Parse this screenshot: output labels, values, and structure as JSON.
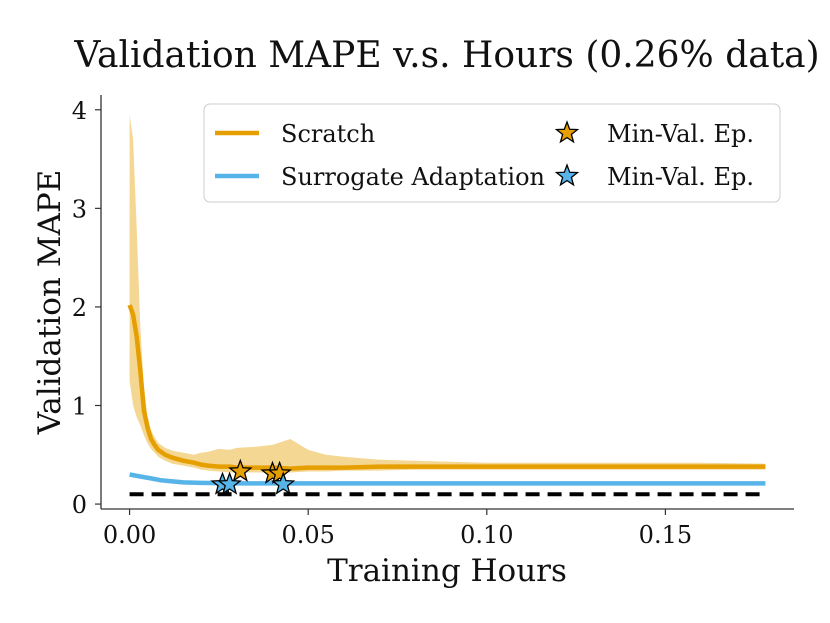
{
  "chart_data": {
    "type": "line",
    "title": "Validation MAPE v.s. Hours (0.26% data)",
    "xlabel": "Training Hours",
    "ylabel": "Validation MAPE",
    "xlim": [
      -0.008,
      0.186
    ],
    "ylim": [
      -0.05,
      4.15
    ],
    "xticks": [
      0.0,
      0.05,
      0.1,
      0.15
    ],
    "xtick_labels": [
      "0.00",
      "0.05",
      "0.10",
      "0.15"
    ],
    "yticks": [
      0,
      1,
      2,
      3,
      4
    ],
    "ytick_labels": [
      "0",
      "1",
      "2",
      "3",
      "4"
    ],
    "grid": false,
    "legend_position": "top-right",
    "series": [
      {
        "name": "Scratch",
        "color": "#E69F00",
        "x": [
          0.0,
          0.001,
          0.002,
          0.003,
          0.004,
          0.005,
          0.006,
          0.007,
          0.008,
          0.01,
          0.012,
          0.015,
          0.018,
          0.02,
          0.022,
          0.025,
          0.028,
          0.03,
          0.035,
          0.04,
          0.045,
          0.05,
          0.055,
          0.06,
          0.07,
          0.08,
          0.09,
          0.1,
          0.12,
          0.14,
          0.16,
          0.178
        ],
        "mean": [
          2.02,
          1.92,
          1.7,
          1.35,
          0.95,
          0.78,
          0.66,
          0.6,
          0.55,
          0.5,
          0.47,
          0.44,
          0.42,
          0.4,
          0.39,
          0.38,
          0.38,
          0.37,
          0.37,
          0.37,
          0.36,
          0.37,
          0.37,
          0.37,
          0.38,
          0.38,
          0.38,
          0.38,
          0.38,
          0.38,
          0.38,
          0.38
        ],
        "upper": [
          3.95,
          3.7,
          2.8,
          1.8,
          1.2,
          0.9,
          0.75,
          0.68,
          0.62,
          0.57,
          0.54,
          0.52,
          0.5,
          0.52,
          0.53,
          0.56,
          0.55,
          0.57,
          0.58,
          0.6,
          0.66,
          0.55,
          0.5,
          0.48,
          0.45,
          0.44,
          0.43,
          0.42,
          0.42,
          0.42,
          0.42,
          0.41
        ],
        "lower": [
          1.25,
          1.0,
          0.88,
          0.8,
          0.7,
          0.62,
          0.56,
          0.52,
          0.48,
          0.44,
          0.41,
          0.39,
          0.37,
          0.35,
          0.34,
          0.33,
          0.32,
          0.32,
          0.32,
          0.32,
          0.32,
          0.33,
          0.33,
          0.34,
          0.34,
          0.35,
          0.35,
          0.35,
          0.35,
          0.35,
          0.35,
          0.35
        ],
        "min_val_markers": [
          [
            0.031,
            0.33
          ],
          [
            0.04,
            0.31
          ],
          [
            0.042,
            0.31
          ]
        ]
      },
      {
        "name": "Surrogate Adaptation",
        "color": "#56B4E9",
        "x": [
          0.0,
          0.003,
          0.006,
          0.009,
          0.012,
          0.015,
          0.02,
          0.03,
          0.05,
          0.08,
          0.12,
          0.178
        ],
        "mean": [
          0.3,
          0.28,
          0.26,
          0.24,
          0.23,
          0.22,
          0.215,
          0.21,
          0.21,
          0.21,
          0.21,
          0.21
        ],
        "min_val_markers": [
          [
            0.026,
            0.2
          ],
          [
            0.028,
            0.2
          ],
          [
            0.043,
            0.2
          ]
        ]
      }
    ],
    "reference_line": {
      "y": 0.1,
      "style": "dashed",
      "color": "#000000"
    },
    "legend": [
      {
        "label": "Scratch",
        "marker_label": "Min-Val. Ep."
      },
      {
        "label": "Surrogate Adaptation",
        "marker_label": "Min-Val. Ep."
      }
    ]
  }
}
